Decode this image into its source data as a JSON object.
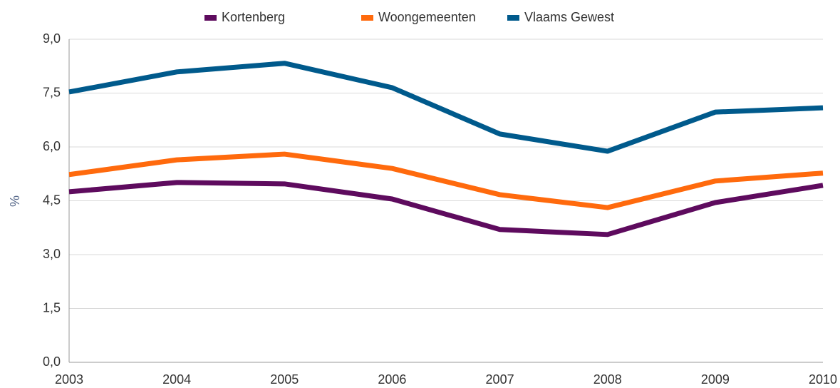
{
  "chart_data": {
    "type": "line",
    "y_label": "%",
    "categories": [
      "2003",
      "2004",
      "2005",
      "2006",
      "2007",
      "2008",
      "2009",
      "2010"
    ],
    "series": [
      {
        "name": "Kortenberg",
        "color": "#5e0b5e",
        "values": [
          4.75,
          5.01,
          4.97,
          4.55,
          3.7,
          3.56,
          4.45,
          4.93
        ]
      },
      {
        "name": "Woongemeenten",
        "color": "#ff6a0d",
        "values": [
          5.23,
          5.64,
          5.8,
          5.4,
          4.67,
          4.31,
          5.05,
          5.27
        ]
      },
      {
        "name": "Vlaams Gewest",
        "color": "#005a8c",
        "values": [
          7.53,
          8.09,
          8.33,
          7.65,
          6.36,
          5.88,
          6.97,
          7.09
        ]
      }
    ],
    "ylim": [
      0,
      9
    ],
    "yticks": [
      {
        "value": 0,
        "label": "0,0"
      },
      {
        "value": 1.5,
        "label": "1,5"
      },
      {
        "value": 3,
        "label": "3,0"
      },
      {
        "value": 4.5,
        "label": "4,5"
      },
      {
        "value": 6,
        "label": "6,0"
      },
      {
        "value": 7.5,
        "label": "7,5"
      },
      {
        "value": 9,
        "label": "9,0"
      }
    ],
    "grid": true,
    "legend": "top"
  }
}
